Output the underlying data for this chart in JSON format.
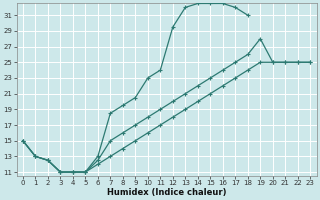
{
  "xlabel": "Humidex (Indice chaleur)",
  "background_color": "#cde8ea",
  "grid_color": "#ffffff",
  "line_color": "#2d7a72",
  "xlim": [
    -0.5,
    23.5
  ],
  "ylim": [
    10.5,
    32.5
  ],
  "xticks": [
    0,
    1,
    2,
    3,
    4,
    5,
    6,
    7,
    8,
    9,
    10,
    11,
    12,
    13,
    14,
    15,
    16,
    17,
    18,
    19,
    20,
    21,
    22,
    23
  ],
  "yticks": [
    11,
    13,
    15,
    17,
    19,
    21,
    23,
    25,
    27,
    29,
    31
  ],
  "curve1_x": [
    0,
    1,
    2,
    3,
    4,
    5,
    6,
    7,
    8,
    9,
    10,
    11,
    12,
    13,
    14,
    15,
    16,
    17,
    18
  ],
  "curve1_y": [
    15,
    13,
    12.5,
    11,
    11,
    11,
    13,
    18.5,
    19.5,
    20.5,
    23,
    24,
    29.5,
    32,
    32.5,
    32.5,
    32.5,
    32,
    31
  ],
  "curve2_x": [
    0,
    1,
    2,
    3,
    4,
    5,
    6,
    7,
    8,
    9,
    10,
    11,
    12,
    13,
    14,
    15,
    16,
    17,
    18,
    19,
    20,
    21,
    22,
    23
  ],
  "curve2_y": [
    15,
    13,
    12.5,
    11,
    11,
    11,
    12.5,
    15,
    16,
    17,
    18,
    19,
    20,
    21,
    22,
    23,
    24,
    25,
    26,
    28,
    25,
    25,
    25,
    25
  ],
  "curve3_x": [
    0,
    1,
    2,
    3,
    4,
    5,
    6,
    7,
    8,
    9,
    10,
    11,
    12,
    13,
    14,
    15,
    16,
    17,
    18,
    19,
    20,
    21,
    22,
    23
  ],
  "curve3_y": [
    15,
    13,
    12.5,
    11,
    11,
    11,
    12,
    13,
    14,
    15,
    16,
    17,
    18,
    19,
    20,
    21,
    22,
    23,
    24,
    25,
    25,
    25,
    25,
    25
  ],
  "xlabel_fontsize": 6,
  "tick_fontsize": 5,
  "linewidth": 0.9,
  "markersize": 3.5
}
